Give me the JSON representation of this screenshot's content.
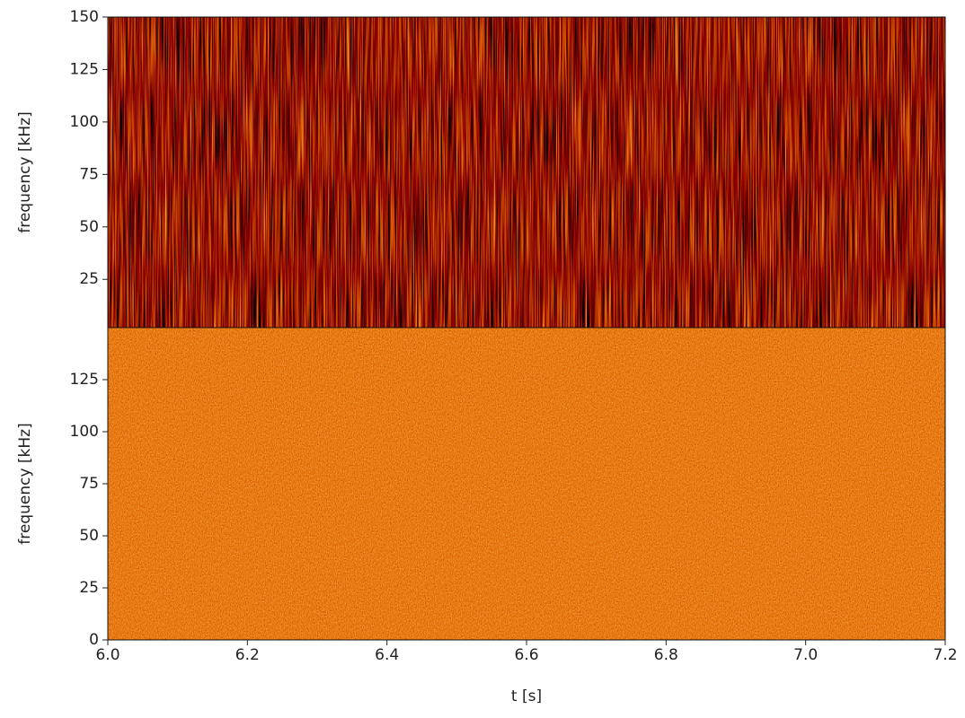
{
  "chart_data": [
    {
      "type": "spectrogram",
      "ylabel": "frequency [kHz]",
      "ylim": [
        2,
        150
      ],
      "yticks": [
        25,
        50,
        75,
        100,
        125,
        150
      ]
    },
    {
      "type": "spectrogram",
      "ylabel": "frequency [kHz]",
      "xlabel": "t [s]",
      "ylim": [
        0,
        150
      ],
      "yticks": [
        0,
        25,
        50,
        75,
        100,
        125
      ],
      "xlim": [
        6,
        7.2
      ],
      "xticks": [
        {
          "value": 6,
          "label": "6.0"
        },
        6.2,
        6.4,
        6.6,
        6.8,
        {
          "value": 7,
          "label": "7.0"
        },
        7.2
      ]
    }
  ]
}
